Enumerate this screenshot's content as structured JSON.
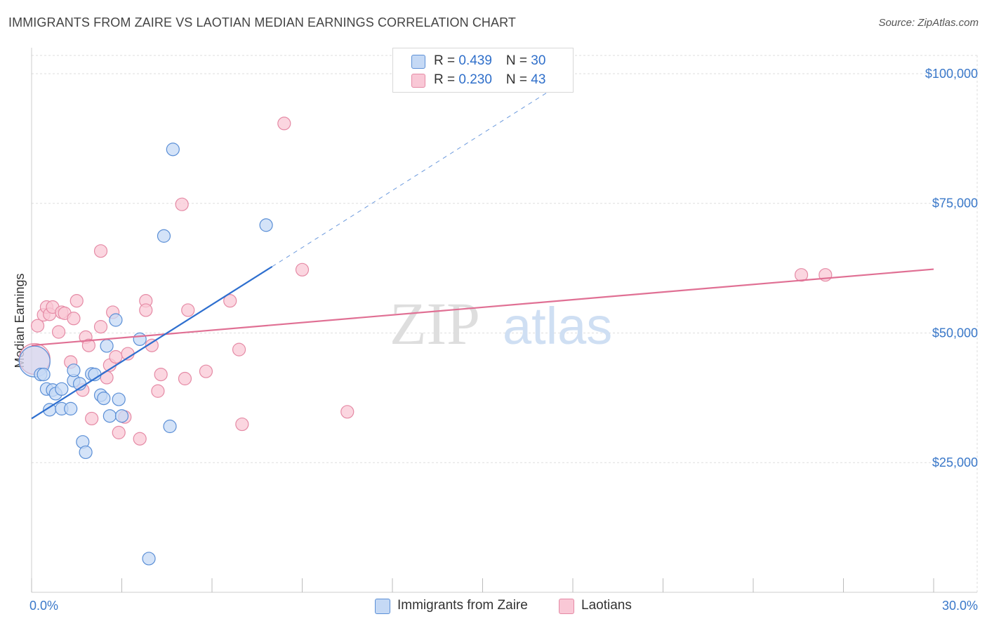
{
  "title": "IMMIGRANTS FROM ZAIRE VS LAOTIAN MEDIAN EARNINGS CORRELATION CHART",
  "source": "Source: ZipAtlas.com",
  "watermark": {
    "part1": "ZIP",
    "part2": "atlas"
  },
  "legend": {
    "items": [
      {
        "r_label": "R = ",
        "r_value": "0.439",
        "n_label": "N = ",
        "n_value": "30"
      },
      {
        "r_label": "R = ",
        "r_value": "0.230",
        "n_label": "N = ",
        "n_value": "43"
      }
    ]
  },
  "bottom_legend": {
    "series1": "Immigrants from Zaire",
    "series2": "Laotians"
  },
  "colors": {
    "series1_fill": "#c5d9f5",
    "series1_stroke": "#5b8fd6",
    "series1_line": "#2e6fcf",
    "series2_fill": "#f9c8d6",
    "series2_stroke": "#e58aa5",
    "series2_line": "#e07094",
    "tick_text": "#3a78c9",
    "grid": "#dddddd"
  },
  "chart_data": {
    "type": "scatter",
    "title": "IMMIGRANTS FROM ZAIRE VS LAOTIAN MEDIAN EARNINGS CORRELATION CHART",
    "xlabel": "",
    "ylabel": "Median Earnings",
    "xlim": [
      0,
      30
    ],
    "ylim": [
      0,
      105000
    ],
    "x_tick_labels": [
      "0.0%",
      "30.0%"
    ],
    "y_ticks": [
      25000,
      50000,
      75000,
      100000
    ],
    "y_tick_labels": [
      "$25,000",
      "$50,000",
      "$75,000",
      "$100,000"
    ],
    "series": [
      {
        "name": "Immigrants from Zaire",
        "R": 0.439,
        "N": 30,
        "trend": {
          "x": [
            0,
            8
          ],
          "y": [
            33500,
            62800
          ]
        },
        "trend_ext": {
          "x": [
            8,
            18
          ],
          "y": [
            62800,
            99500
          ]
        },
        "points": [
          {
            "x": 0.1,
            "y": 44500,
            "big": true
          },
          {
            "x": 0.3,
            "y": 42000
          },
          {
            "x": 0.4,
            "y": 42000
          },
          {
            "x": 0.5,
            "y": 39200
          },
          {
            "x": 0.6,
            "y": 35200
          },
          {
            "x": 0.7,
            "y": 39000
          },
          {
            "x": 0.8,
            "y": 38300
          },
          {
            "x": 1.0,
            "y": 39200
          },
          {
            "x": 1.0,
            "y": 35400
          },
          {
            "x": 1.3,
            "y": 35400
          },
          {
            "x": 1.4,
            "y": 40800
          },
          {
            "x": 1.4,
            "y": 42800
          },
          {
            "x": 1.6,
            "y": 40200
          },
          {
            "x": 1.7,
            "y": 29000
          },
          {
            "x": 1.8,
            "y": 27000
          },
          {
            "x": 2.0,
            "y": 42100
          },
          {
            "x": 2.1,
            "y": 42000
          },
          {
            "x": 2.3,
            "y": 38000
          },
          {
            "x": 2.4,
            "y": 37400
          },
          {
            "x": 2.5,
            "y": 47500
          },
          {
            "x": 2.6,
            "y": 34000
          },
          {
            "x": 2.8,
            "y": 52500
          },
          {
            "x": 2.9,
            "y": 37200
          },
          {
            "x": 3.0,
            "y": 34000
          },
          {
            "x": 3.6,
            "y": 48800
          },
          {
            "x": 3.9,
            "y": 6500
          },
          {
            "x": 4.4,
            "y": 68700
          },
          {
            "x": 4.6,
            "y": 32000
          },
          {
            "x": 4.7,
            "y": 85400
          },
          {
            "x": 7.8,
            "y": 70800
          }
        ]
      },
      {
        "name": "Laotians",
        "R": 0.23,
        "N": 43,
        "trend": {
          "x": [
            0,
            30
          ],
          "y": [
            47600,
            62300
          ]
        },
        "points": [
          {
            "x": 0.1,
            "y": 45000,
            "big": true
          },
          {
            "x": 0.2,
            "y": 51400
          },
          {
            "x": 0.4,
            "y": 53500
          },
          {
            "x": 0.5,
            "y": 55000
          },
          {
            "x": 0.6,
            "y": 53600
          },
          {
            "x": 0.7,
            "y": 55000
          },
          {
            "x": 0.9,
            "y": 50200
          },
          {
            "x": 1.0,
            "y": 54000
          },
          {
            "x": 1.1,
            "y": 53800
          },
          {
            "x": 1.3,
            "y": 44400
          },
          {
            "x": 1.4,
            "y": 52800
          },
          {
            "x": 1.5,
            "y": 56200
          },
          {
            "x": 1.7,
            "y": 39000
          },
          {
            "x": 1.8,
            "y": 49200
          },
          {
            "x": 1.9,
            "y": 47600
          },
          {
            "x": 2.0,
            "y": 33500
          },
          {
            "x": 2.3,
            "y": 51200
          },
          {
            "x": 2.3,
            "y": 65800
          },
          {
            "x": 2.5,
            "y": 41400
          },
          {
            "x": 2.6,
            "y": 43800
          },
          {
            "x": 2.7,
            "y": 54000
          },
          {
            "x": 2.8,
            "y": 45400
          },
          {
            "x": 2.9,
            "y": 30800
          },
          {
            "x": 3.1,
            "y": 33800
          },
          {
            "x": 3.2,
            "y": 46000
          },
          {
            "x": 3.6,
            "y": 29600
          },
          {
            "x": 3.8,
            "y": 56200
          },
          {
            "x": 3.8,
            "y": 54400
          },
          {
            "x": 4.0,
            "y": 47600
          },
          {
            "x": 4.2,
            "y": 38800
          },
          {
            "x": 4.3,
            "y": 42000
          },
          {
            "x": 5.0,
            "y": 74800
          },
          {
            "x": 5.1,
            "y": 41200
          },
          {
            "x": 5.2,
            "y": 54400
          },
          {
            "x": 5.8,
            "y": 42600
          },
          {
            "x": 6.6,
            "y": 56200
          },
          {
            "x": 6.9,
            "y": 46800
          },
          {
            "x": 7.0,
            "y": 32400
          },
          {
            "x": 8.4,
            "y": 90400
          },
          {
            "x": 9.0,
            "y": 62200
          },
          {
            "x": 10.5,
            "y": 34800
          },
          {
            "x": 25.6,
            "y": 61200
          },
          {
            "x": 26.4,
            "y": 61200
          }
        ]
      }
    ]
  }
}
